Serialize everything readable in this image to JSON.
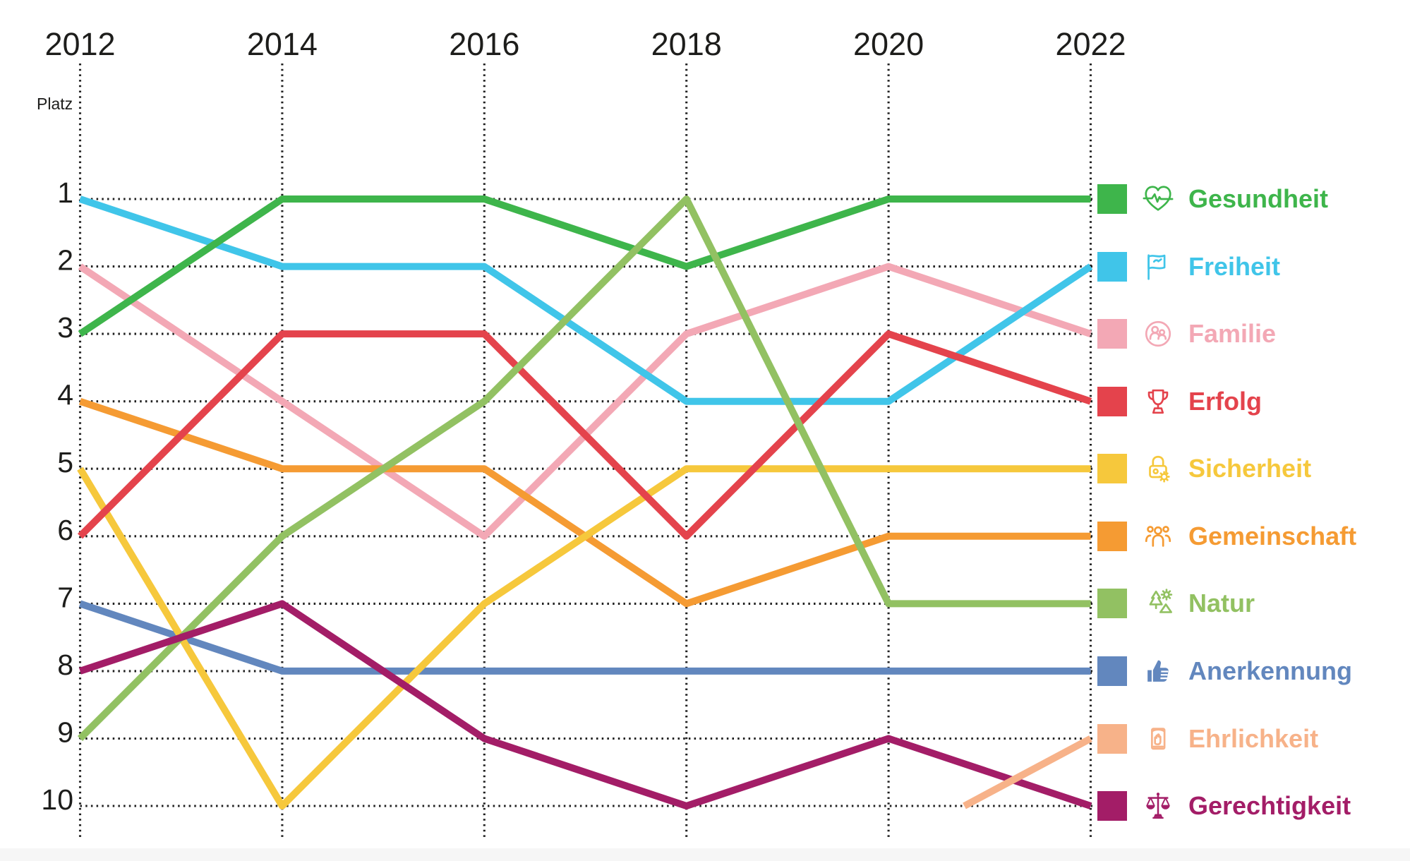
{
  "page": {
    "background": "#ffffff",
    "footer_strip_color": "#f6f6f6"
  },
  "axis": {
    "rank_axis_title": "Platz",
    "year_labels": [
      "2012",
      "2014",
      "2016",
      "2018",
      "2020",
      "2022"
    ],
    "rank_labels": [
      "1",
      "2",
      "3",
      "4",
      "5",
      "6",
      "7",
      "8",
      "9",
      "10"
    ]
  },
  "chart_data": {
    "type": "line",
    "subtype": "bump-ranking",
    "title": "",
    "xlabel": "",
    "ylabel": "Platz",
    "x": [
      2012,
      2014,
      2016,
      2018,
      2020,
      2022
    ],
    "ylim": [
      1,
      10
    ],
    "y_inverted": true,
    "grid": "dotted",
    "legend_position": "right",
    "gridline_color": "#1f1f1f",
    "text_color": "#1d1d1b",
    "series": [
      {
        "name": "Gesundheit",
        "color": "#3eb54b",
        "icon": "heart-pulse-icon",
        "points": [
          [
            2012,
            3
          ],
          [
            2014,
            1
          ],
          [
            2016,
            1
          ],
          [
            2018,
            2
          ],
          [
            2020,
            1
          ],
          [
            2022,
            1
          ]
        ]
      },
      {
        "name": "Freiheit",
        "color": "#40c5e9",
        "icon": "peace-flag-icon",
        "points": [
          [
            2012,
            1
          ],
          [
            2014,
            2
          ],
          [
            2016,
            2
          ],
          [
            2018,
            4
          ],
          [
            2020,
            4
          ],
          [
            2022,
            2
          ]
        ]
      },
      {
        "name": "Familie",
        "color": "#f3a8b5",
        "icon": "family-icon",
        "points": [
          [
            2012,
            2
          ],
          [
            2014,
            4
          ],
          [
            2016,
            6
          ],
          [
            2018,
            3
          ],
          [
            2020,
            2
          ],
          [
            2022,
            3
          ]
        ]
      },
      {
        "name": "Erfolg",
        "color": "#e4434c",
        "icon": "trophy-icon",
        "points": [
          [
            2012,
            6
          ],
          [
            2014,
            3
          ],
          [
            2016,
            3
          ],
          [
            2018,
            6
          ],
          [
            2020,
            3
          ],
          [
            2022,
            4
          ]
        ]
      },
      {
        "name": "Sicherheit",
        "color": "#f6c83c",
        "icon": "lock-icon",
        "points": [
          [
            2012,
            5
          ],
          [
            2014,
            10
          ],
          [
            2016,
            7
          ],
          [
            2018,
            5
          ],
          [
            2020,
            5
          ],
          [
            2022,
            5
          ]
        ]
      },
      {
        "name": "Gemeinschaft",
        "color": "#f59b33",
        "icon": "people-group-icon",
        "points": [
          [
            2012,
            4
          ],
          [
            2014,
            5
          ],
          [
            2016,
            5
          ],
          [
            2018,
            7
          ],
          [
            2020,
            6
          ],
          [
            2022,
            6
          ]
        ]
      },
      {
        "name": "Natur",
        "color": "#92c162",
        "icon": "nature-icon",
        "points": [
          [
            2012,
            9
          ],
          [
            2014,
            6
          ],
          [
            2016,
            4
          ],
          [
            2018,
            1
          ],
          [
            2020,
            7
          ],
          [
            2022,
            7
          ]
        ]
      },
      {
        "name": "Anerkennung",
        "color": "#6287be",
        "icon": "thumb-up-icon",
        "points": [
          [
            2012,
            7
          ],
          [
            2014,
            8
          ],
          [
            2016,
            8
          ],
          [
            2018,
            8
          ],
          [
            2020,
            8
          ],
          [
            2022,
            8
          ]
        ]
      },
      {
        "name": "Ehrlichkeit",
        "color": "#f7b289",
        "icon": "oath-hand-icon",
        "points": [
          [
            2020.75,
            10
          ],
          [
            2022,
            9
          ]
        ]
      },
      {
        "name": "Gerechtigkeit",
        "color": "#a31d67",
        "icon": "scales-icon",
        "points": [
          [
            2012,
            8
          ],
          [
            2014,
            7
          ],
          [
            2016,
            9
          ],
          [
            2018,
            10
          ],
          [
            2020,
            9
          ],
          [
            2022,
            10
          ]
        ]
      }
    ]
  }
}
